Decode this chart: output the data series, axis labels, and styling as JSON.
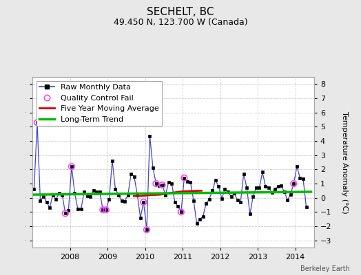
{
  "title": "SECHELT, BC",
  "subtitle": "49.450 N, 123.700 W (Canada)",
  "ylabel": "Temperature Anomaly (°C)",
  "credit": "Berkeley Earth",
  "ylim": [
    -3.5,
    8.5
  ],
  "xlim": [
    2007.0,
    2014.5
  ],
  "yticks": [
    -3,
    -2,
    -1,
    0,
    1,
    2,
    3,
    4,
    5,
    6,
    7,
    8
  ],
  "xtick_years": [
    2008,
    2009,
    2010,
    2011,
    2012,
    2013,
    2014
  ],
  "raw_x": [
    2007.042,
    2007.125,
    2007.208,
    2007.292,
    2007.375,
    2007.458,
    2007.542,
    2007.625,
    2007.708,
    2007.792,
    2007.875,
    2007.958,
    2008.042,
    2008.125,
    2008.208,
    2008.292,
    2008.375,
    2008.458,
    2008.542,
    2008.625,
    2008.708,
    2008.792,
    2008.875,
    2008.958,
    2009.042,
    2009.125,
    2009.208,
    2009.292,
    2009.375,
    2009.458,
    2009.542,
    2009.625,
    2009.708,
    2009.792,
    2009.875,
    2009.958,
    2010.042,
    2010.125,
    2010.208,
    2010.292,
    2010.375,
    2010.458,
    2010.542,
    2010.625,
    2010.708,
    2010.792,
    2010.875,
    2010.958,
    2011.042,
    2011.125,
    2011.208,
    2011.292,
    2011.375,
    2011.458,
    2011.542,
    2011.625,
    2011.708,
    2011.792,
    2011.875,
    2011.958,
    2012.042,
    2012.125,
    2012.208,
    2012.292,
    2012.375,
    2012.458,
    2012.542,
    2012.625,
    2012.708,
    2012.792,
    2012.875,
    2012.958,
    2013.042,
    2013.125,
    2013.208,
    2013.292,
    2013.375,
    2013.458,
    2013.542,
    2013.625,
    2013.708,
    2013.792,
    2013.875,
    2013.958,
    2014.042,
    2014.125,
    2014.208,
    2014.292
  ],
  "raw_y": [
    0.6,
    5.3,
    -0.2,
    0.1,
    -0.3,
    -0.7,
    0.2,
    -0.1,
    0.3,
    0.2,
    -1.1,
    -0.9,
    2.2,
    0.3,
    -0.8,
    -0.8,
    0.4,
    0.15,
    0.1,
    0.5,
    0.4,
    0.4,
    -0.85,
    -0.85,
    -0.1,
    2.6,
    0.6,
    0.2,
    -0.2,
    -0.25,
    0.2,
    1.7,
    1.5,
    0.2,
    -1.4,
    -0.3,
    -2.25,
    4.35,
    2.1,
    1.0,
    0.85,
    0.9,
    0.2,
    1.1,
    1.0,
    -0.3,
    -0.6,
    -1.0,
    1.4,
    1.15,
    1.1,
    -0.2,
    -1.8,
    -1.5,
    -1.3,
    -0.4,
    -0.1,
    0.5,
    1.25,
    0.8,
    -0.05,
    0.6,
    0.4,
    0.1,
    0.3,
    -0.15,
    -0.3,
    1.7,
    0.7,
    -1.15,
    0.1,
    0.7,
    0.7,
    1.8,
    0.8,
    0.7,
    0.35,
    0.6,
    0.8,
    0.85,
    0.4,
    -0.15,
    0.25,
    1.0,
    2.2,
    1.4,
    1.35,
    -0.65
  ],
  "qc_fail_x": [
    2007.125,
    2007.875,
    2008.042,
    2008.875,
    2008.958,
    2009.958,
    2010.042,
    2010.292,
    2010.458,
    2010.958,
    2011.042,
    2013.958
  ],
  "qc_fail_y": [
    5.3,
    -1.1,
    2.2,
    -0.85,
    -0.85,
    -0.3,
    -2.25,
    1.0,
    0.9,
    -1.0,
    1.4,
    1.0
  ],
  "moving_avg_x": [
    2009.7,
    2009.9,
    2010.1,
    2010.4,
    2010.7,
    2011.0,
    2011.3,
    2011.5
  ],
  "moving_avg_y": [
    0.12,
    0.13,
    0.18,
    0.22,
    0.35,
    0.45,
    0.48,
    0.5
  ],
  "trend_x": [
    2007.0,
    2014.42
  ],
  "trend_y": [
    0.22,
    0.42
  ],
  "bg_color": "#e8e8e8",
  "plot_bg_color": "#ffffff",
  "raw_line_color": "#4444cc",
  "raw_marker_color": "#000000",
  "qc_color": "#ff44ff",
  "moving_avg_color": "#dd0000",
  "trend_color": "#00bb00",
  "title_fontsize": 11,
  "subtitle_fontsize": 9,
  "ylabel_fontsize": 8,
  "legend_fontsize": 8,
  "tick_fontsize": 8
}
